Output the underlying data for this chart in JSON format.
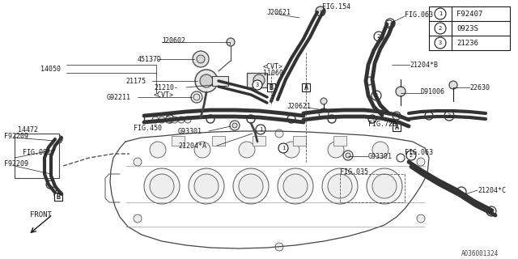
{
  "background_color": "#ffffff",
  "line_color": "#1a1a1a",
  "legend_items": [
    {
      "num": "1",
      "code": "F92407"
    },
    {
      "num": "2",
      "code": "0923S"
    },
    {
      "num": "3",
      "code": "21236"
    }
  ],
  "watermark": "A036001324",
  "front_label": "FRONT",
  "fig_width": 6.4,
  "fig_height": 3.2,
  "dpi": 100
}
